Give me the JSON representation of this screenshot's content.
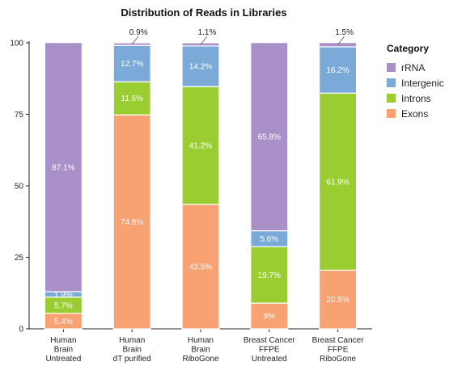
{
  "chart_data": {
    "type": "bar",
    "stacked": true,
    "title": "Distribution of Reads in Libraries",
    "xlabel": "",
    "ylabel": "",
    "ylim": [
      0,
      100
    ],
    "yticks": [
      "0",
      "25",
      "50",
      "75",
      "100"
    ],
    "categories": [
      [
        "Human",
        "Brain",
        "Untreated"
      ],
      [
        "Human",
        "Brain",
        "dT purified"
      ],
      [
        "Human",
        "Brain",
        "RiboGone"
      ],
      [
        "Breast Cancer",
        "FFPE",
        "Untreated"
      ],
      [
        "Breast Cancer",
        "FFPE",
        "RiboGone"
      ]
    ],
    "legend": {
      "title": "Category",
      "position": "right"
    },
    "series": [
      {
        "name": "Exons",
        "color": "#f8a273",
        "values": [
          5.4,
          74.8,
          43.5,
          9,
          20.5
        ],
        "labels": [
          "5.4%",
          "74.8%",
          "43.5%",
          "9%",
          "20.5%"
        ]
      },
      {
        "name": "Introns",
        "color": "#9acd32",
        "values": [
          5.7,
          11.6,
          41.2,
          19.7,
          61.9
        ],
        "labels": [
          "5.7%",
          "11.6%",
          "41.2%",
          "19.7%",
          "61.9%"
        ]
      },
      {
        "name": "Intergenic",
        "color": "#7ba9d8",
        "values": [
          1.9,
          12.7,
          14.2,
          5.6,
          16.2
        ],
        "labels": [
          "1.9%",
          "12.7%",
          "14.2%",
          "5.6%",
          "16.2%"
        ]
      },
      {
        "name": "rRNA",
        "color": "#a990c8",
        "values": [
          87.1,
          0.9,
          1.1,
          65.8,
          1.5
        ],
        "labels": [
          "87.1%",
          "0.9%",
          "1.1%",
          "65.8%",
          "1.5%"
        ]
      }
    ],
    "legend_order": [
      "rRNA",
      "Intergenic",
      "Introns",
      "Exons"
    ]
  }
}
